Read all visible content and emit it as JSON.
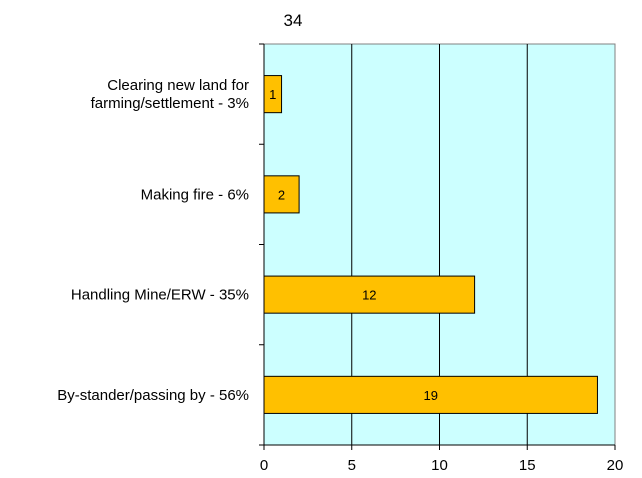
{
  "chart_data": {
    "type": "bar",
    "orientation": "horizontal",
    "title": "34",
    "xlabel": "",
    "ylabel": "",
    "categories": [
      "By-stander/passing by - 56%",
      "Handling Mine/ERW - 35%",
      "Making fire - 6%",
      "Clearing new land for farming/settlement - 3%"
    ],
    "values": [
      19,
      12,
      2,
      1
    ],
    "data_labels": [
      "19",
      "12",
      "2",
      "1"
    ],
    "xlim": [
      0,
      20
    ],
    "xticks": [
      0,
      5,
      10,
      15,
      20
    ],
    "grid": "vertical",
    "legend": "none",
    "colors": {
      "plot_background": "#ccffff",
      "bar_fill": "#ffc000",
      "bar_stroke": "#000000",
      "grid": "#000000"
    }
  }
}
